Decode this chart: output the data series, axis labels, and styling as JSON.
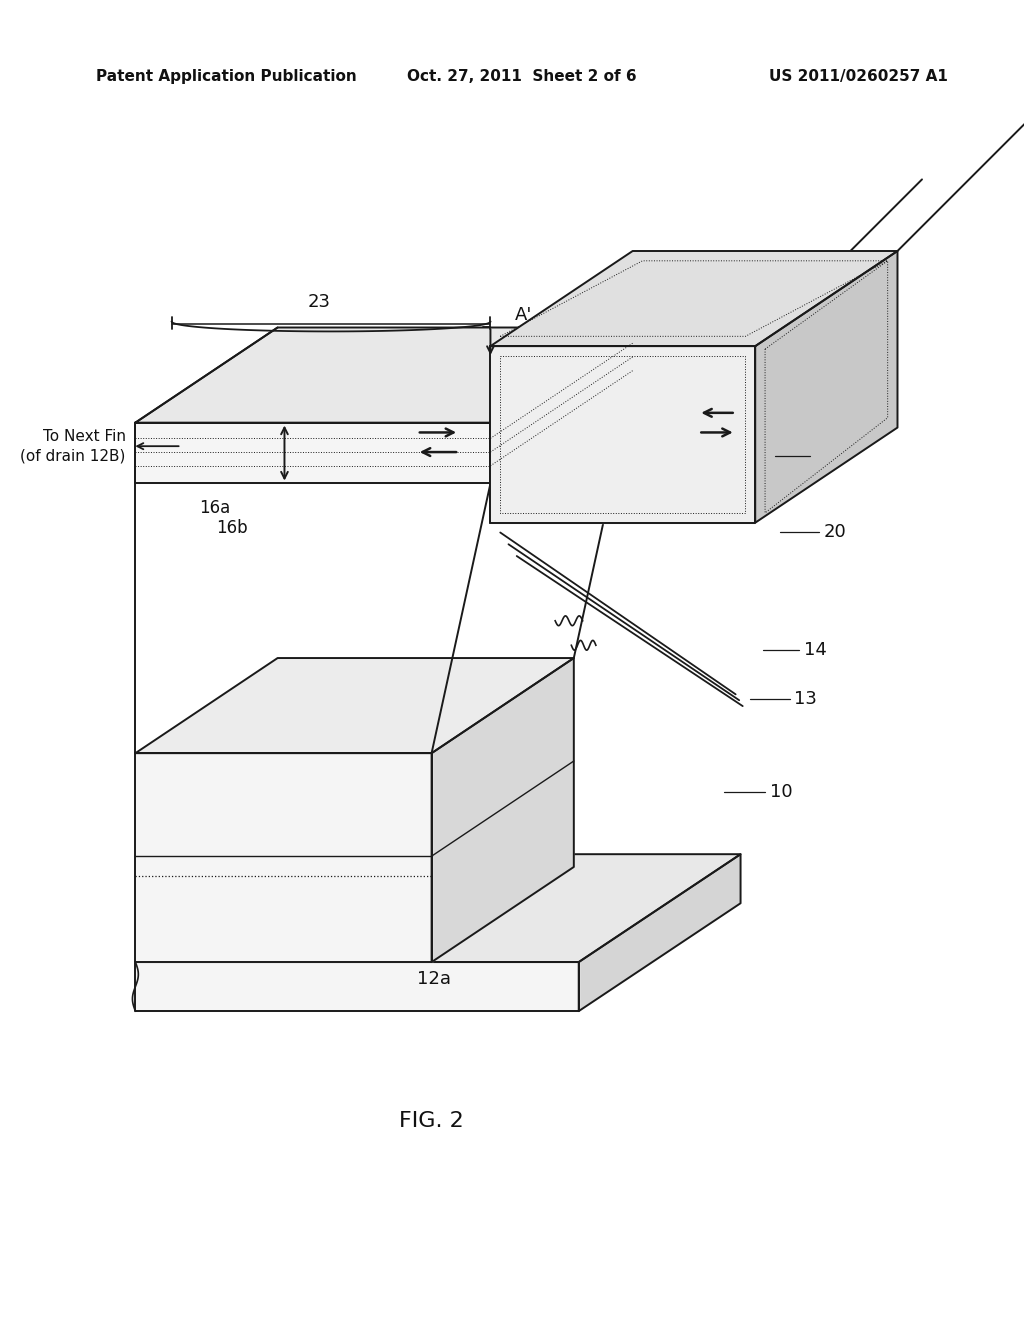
{
  "header_left": "Patent Application Publication",
  "header_center": "Oct. 27, 2011  Sheet 2 of 6",
  "header_right": "US 2011/0260257 A1",
  "title": "FIG. 2",
  "bg_color": "#ffffff",
  "line_color": "#1a1a1a",
  "figsize": [
    10.24,
    13.2
  ],
  "dpi": 100
}
